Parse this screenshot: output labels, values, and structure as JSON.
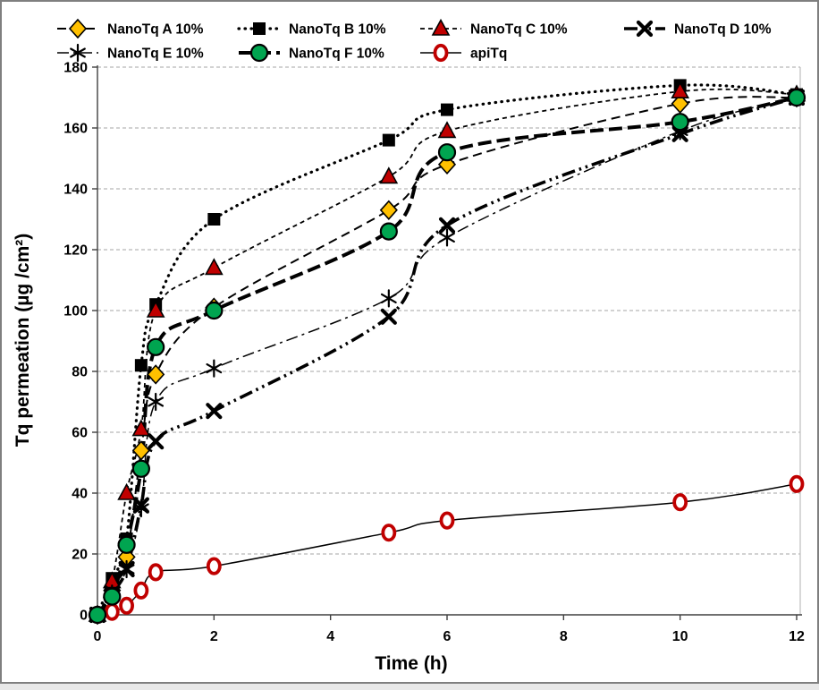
{
  "figure": {
    "background": "#ffffff",
    "border_color": "#7f7f7f"
  },
  "chart_data": {
    "type": "line",
    "title": "",
    "xlabel": "Time (h)",
    "ylabel": "Tq permeation (µg /cm²)",
    "xlim": [
      0,
      12
    ],
    "ylim": [
      0,
      180
    ],
    "x_ticks": [
      0,
      2,
      4,
      6,
      8,
      10,
      12
    ],
    "y_ticks": [
      0,
      20,
      40,
      60,
      80,
      100,
      120,
      140,
      160,
      180
    ],
    "grid": "horizontal-dashed",
    "grid_color": "#a6a6a6",
    "axis_color": "#404040",
    "right_border_color": "#bfbfbf",
    "legend_position": "top",
    "x": [
      0,
      0.25,
      0.5,
      0.75,
      1,
      2,
      5,
      6,
      10,
      12
    ],
    "series": [
      {
        "name": "NanoTq A 10%",
        "marker": "diamond",
        "marker_color": "#FFC000",
        "line_color": "#000000",
        "line_style": "dashed",
        "line_width": 2,
        "values": [
          0,
          8,
          19,
          54,
          79,
          101,
          133,
          148,
          168,
          170
        ]
      },
      {
        "name": "NanoTq B 10%",
        "marker": "square",
        "marker_color": "#000000",
        "line_color": "#000000",
        "line_style": "dotted",
        "line_width": 3.2,
        "values": [
          0,
          12,
          25,
          82,
          102,
          130,
          156,
          166,
          174,
          171
        ]
      },
      {
        "name": "NanoTq C 10%",
        "marker": "triangle",
        "marker_color": "#C00000",
        "line_color": "#000000",
        "line_style": "fine-dashed",
        "line_width": 1.8,
        "values": [
          0,
          11,
          40,
          61,
          100,
          114,
          144,
          159,
          172,
          171
        ]
      },
      {
        "name": "NanoTq D 10%",
        "marker": "xmark",
        "marker_color": "#000000",
        "line_color": "#000000",
        "line_style": "dash-dot-dot",
        "line_width": 3.6,
        "values": [
          0,
          7,
          15,
          36,
          57,
          67,
          98,
          128,
          158,
          170
        ]
      },
      {
        "name": "NanoTq E 10%",
        "marker": "asterisk",
        "marker_color": "#000000",
        "line_color": "#000000",
        "line_style": "dash-dot",
        "line_width": 1.5,
        "values": [
          0,
          7,
          15,
          35,
          70,
          81,
          104,
          124,
          159,
          170
        ]
      },
      {
        "name": "NanoTq F 10%",
        "marker": "circle",
        "marker_color": "#00A550",
        "line_color": "#000000",
        "line_style": "long-dash",
        "line_width": 4,
        "values": [
          0,
          6,
          23,
          48,
          88,
          100,
          126,
          152,
          162,
          170
        ]
      },
      {
        "name": "apiTq",
        "marker": "ring",
        "marker_color": "#C00000",
        "line_color": "#000000",
        "line_style": "solid",
        "line_width": 1.5,
        "values": [
          0,
          1,
          3,
          8,
          14,
          16,
          27,
          31,
          37,
          43
        ]
      }
    ]
  }
}
